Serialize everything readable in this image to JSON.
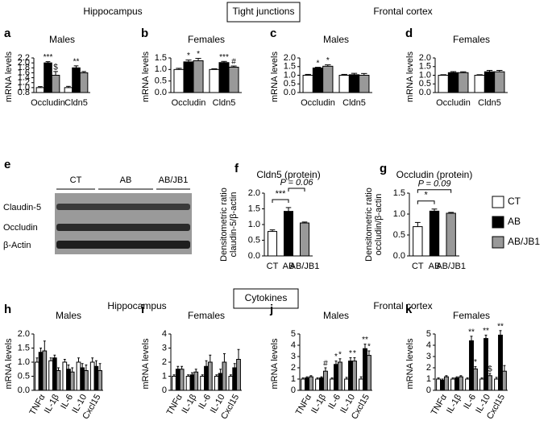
{
  "figure": {
    "headings": [
      "Hippocampus",
      "Tight junctions",
      "Frontal cortex",
      "Cytokines",
      "Hippocampus",
      "Frontal cortex"
    ],
    "blot": {
      "panel": "e",
      "groups": [
        "CT",
        "AB",
        "AB/JB1"
      ],
      "rows": [
        "Claudin-5",
        "Occludin",
        "β-Actin"
      ]
    }
  },
  "chart_data": [
    {
      "type": "bar",
      "panel": "a",
      "title": "Males",
      "ylabel": "mRNA levels",
      "categories": [
        "Occludin",
        "Cldn5"
      ],
      "ylim": [
        0.8,
        2.2
      ],
      "yticks": [
        0.8,
        {
          "value": 1,
          "label": "1.0"
        },
        1.2,
        1.4,
        1.6,
        1.8,
        {
          "value": 2,
          "label": "2.0"
        },
        2.2
      ],
      "series": [
        {
          "name": "CT",
          "color": "#ffffff",
          "values": [
            1.0,
            1.0
          ],
          "errors": [
            0.04,
            0.05
          ]
        },
        {
          "name": "AB",
          "color": "#000000",
          "values": [
            2.0,
            1.8
          ],
          "errors": [
            0.05,
            0.08
          ],
          "significance": [
            "***",
            "**"
          ]
        },
        {
          "name": "AB/JB1",
          "color": "#999999",
          "values": [
            1.5,
            1.6
          ],
          "errors": [
            0.15,
            0.05
          ],
          "significance": [
            "$",
            null
          ]
        }
      ]
    },
    {
      "type": "bar",
      "panel": "b",
      "title": "Females",
      "ylabel": "mRNA levels",
      "categories": [
        "Occludin",
        "Cldn5"
      ],
      "ylim": [
        0,
        1.5
      ],
      "yticks": [
        {
          "value": 0,
          "label": "0.0"
        },
        0.5,
        {
          "value": 1,
          "label": "1.0"
        },
        1.5
      ],
      "series": [
        {
          "name": "CT",
          "color": "#ffffff",
          "values": [
            1.0,
            1.0
          ],
          "errors": [
            0.05,
            0.03
          ]
        },
        {
          "name": "AB",
          "color": "#000000",
          "values": [
            1.33,
            1.3
          ],
          "errors": [
            0.08,
            0.05
          ],
          "significance": [
            "*",
            "***"
          ]
        },
        {
          "name": "AB/JB1",
          "color": "#999999",
          "values": [
            1.38,
            1.1
          ],
          "errors": [
            0.1,
            0.05
          ],
          "significance": [
            "*",
            "#"
          ]
        }
      ]
    },
    {
      "type": "bar",
      "panel": "c",
      "title": "Males",
      "ylabel": "mRNA levels",
      "categories": [
        "Occludin",
        "Cldn5"
      ],
      "ylim": [
        0,
        2
      ],
      "yticks": [
        {
          "value": 0,
          "label": "0.0"
        },
        0.5,
        {
          "value": 1,
          "label": "1.0"
        },
        1.5,
        {
          "value": 2,
          "label": "2.0"
        }
      ],
      "series": [
        {
          "name": "CT",
          "color": "#ffffff",
          "values": [
            1.0,
            1.0
          ],
          "errors": [
            0.05,
            0.05
          ]
        },
        {
          "name": "AB",
          "color": "#000000",
          "values": [
            1.42,
            1.03
          ],
          "errors": [
            0.04,
            0.08
          ],
          "significance": [
            "*",
            null
          ]
        },
        {
          "name": "AB/JB1",
          "color": "#999999",
          "values": [
            1.52,
            1.0
          ],
          "errors": [
            0.08,
            0.1
          ],
          "significance": [
            "*",
            null
          ]
        }
      ]
    },
    {
      "type": "bar",
      "panel": "d",
      "title": "Females",
      "ylabel": "mRNA levels",
      "categories": [
        "Occludin",
        "Cldn5"
      ],
      "ylim": [
        0,
        2
      ],
      "yticks": [
        {
          "value": 0,
          "label": "0.0"
        },
        0.5,
        {
          "value": 1,
          "label": "1.0"
        },
        1.5,
        {
          "value": 2,
          "label": "2.0"
        }
      ],
      "series": [
        {
          "name": "CT",
          "color": "#ffffff",
          "values": [
            1.0,
            1.0
          ],
          "errors": [
            0.03,
            0.03
          ]
        },
        {
          "name": "AB",
          "color": "#000000",
          "values": [
            1.15,
            1.2
          ],
          "errors": [
            0.06,
            0.08
          ]
        },
        {
          "name": "AB/JB1",
          "color": "#999999",
          "values": [
            1.15,
            1.2
          ],
          "errors": [
            0.05,
            0.08
          ]
        }
      ]
    },
    {
      "type": "bar",
      "panel": "f",
      "title": "Cldn5 (protein)",
      "ylabel": [
        "Densitometric ratio",
        "claudin-5/β-actin"
      ],
      "categories": [
        "CT",
        "AB",
        "AB/JB1"
      ],
      "values": [
        0.78,
        1.42,
        1.05
      ],
      "errors": [
        0.05,
        0.12,
        0.03
      ],
      "colors": [
        "#ffffff",
        "#000000",
        "#999999"
      ],
      "ylim": [
        0,
        2
      ],
      "yticks": [
        {
          "value": 0,
          "label": "0.0"
        },
        0.5,
        {
          "value": 1,
          "label": "1.0"
        },
        1.5,
        {
          "value": 2,
          "label": "2.0"
        }
      ],
      "brackets": [
        {
          "text": "***",
          "from": 0,
          "to": 1
        },
        {
          "text": "P = 0.06",
          "from": 1,
          "to": 2
        }
      ]
    },
    {
      "type": "bar",
      "panel": "g",
      "title": "Occludin (protein)",
      "ylabel": [
        "Densitometric ratio",
        "occludin/β-actin"
      ],
      "categories": [
        "CT",
        "AB",
        "AB/JB1"
      ],
      "values": [
        0.7,
        1.07,
        1.02
      ],
      "errors": [
        0.1,
        0.05,
        0.02
      ],
      "colors": [
        "#ffffff",
        "#000000",
        "#999999"
      ],
      "ylim": [
        0,
        1.5
      ],
      "yticks": [
        {
          "value": 0,
          "label": "0.0"
        },
        0.5,
        {
          "value": 1,
          "label": "1.0"
        },
        1.5
      ],
      "brackets": [
        {
          "text": "*",
          "from": 0,
          "to": 1
        },
        {
          "text": "P = 0.09",
          "from": 0,
          "to": 2
        }
      ]
    },
    {
      "type": "bar",
      "panel": "h",
      "title": "Males",
      "ylabel": "mRNA levels",
      "categories": [
        "TNFα",
        "IL-1β",
        "IL-6",
        "IL-10",
        "Cxcl15"
      ],
      "ylim": [
        0,
        2
      ],
      "yticks": [
        {
          "value": 0,
          "label": "0.0"
        },
        0.5,
        {
          "value": 1,
          "label": "1.0"
        },
        1.5,
        {
          "value": 2,
          "label": "2.0"
        }
      ],
      "series": [
        {
          "name": "CT",
          "color": "#ffffff",
          "values": [
            1.0,
            1.05,
            1.0,
            1.0,
            1.0
          ],
          "errors": [
            0.15,
            0.1,
            0.1,
            0.15,
            0.15
          ]
        },
        {
          "name": "AB",
          "color": "#000000",
          "values": [
            1.35,
            1.15,
            0.75,
            0.8,
            0.85
          ],
          "errors": [
            0.15,
            0.1,
            0.15,
            0.15,
            0.2
          ]
        },
        {
          "name": "AB/JB1",
          "color": "#999999",
          "values": [
            1.4,
            0.7,
            0.65,
            0.7,
            0.7
          ],
          "errors": [
            0.35,
            0.1,
            0.15,
            0.2,
            0.25
          ]
        }
      ]
    },
    {
      "type": "bar",
      "panel": "i",
      "title": "Females",
      "ylabel": "mRNA levels",
      "categories": [
        "TNFα",
        "IL-1β",
        "IL-6",
        "IL-10",
        "Cxcl15"
      ],
      "ylim": [
        0,
        4
      ],
      "yticks": [
        0,
        1,
        2,
        3,
        4
      ],
      "series": [
        {
          "name": "CT",
          "color": "#ffffff",
          "values": [
            1.0,
            1.0,
            1.0,
            1.0,
            1.0
          ],
          "errors": [
            0.1,
            0.1,
            0.1,
            0.1,
            0.1
          ]
        },
        {
          "name": "AB",
          "color": "#000000",
          "values": [
            1.5,
            1.1,
            1.7,
            1.2,
            1.6
          ],
          "errors": [
            0.2,
            0.15,
            0.4,
            0.3,
            0.3
          ]
        },
        {
          "name": "AB/JB1",
          "color": "#999999",
          "values": [
            1.5,
            1.3,
            2.0,
            2.0,
            2.2
          ],
          "errors": [
            0.2,
            0.2,
            0.5,
            0.6,
            0.7
          ]
        }
      ]
    },
    {
      "type": "bar",
      "panel": "j",
      "title": "Males",
      "ylabel": "mRNA levels",
      "categories": [
        "TNFα",
        "IL-1β",
        "IL-6",
        "IL-10",
        "Cxcl15"
      ],
      "ylim": [
        0,
        5
      ],
      "yticks": [
        0,
        1,
        2,
        3,
        4,
        5
      ],
      "series": [
        {
          "name": "CT",
          "color": "#ffffff",
          "values": [
            1.0,
            1.0,
            1.0,
            1.0,
            1.0
          ],
          "errors": [
            0.1,
            0.1,
            0.1,
            0.15,
            0.2
          ]
        },
        {
          "name": "AB",
          "color": "#000000",
          "values": [
            1.1,
            1.1,
            2.3,
            2.6,
            3.7
          ],
          "errors": [
            0.1,
            0.1,
            0.3,
            0.3,
            0.4
          ],
          "significance": [
            null,
            null,
            "*",
            "*",
            "**"
          ]
        },
        {
          "name": "AB/JB1",
          "color": "#999999",
          "values": [
            1.2,
            1.7,
            2.5,
            2.6,
            3.1
          ],
          "errors": [
            0.1,
            0.3,
            0.3,
            0.3,
            0.4
          ],
          "significance": [
            null,
            "#",
            "*",
            "*",
            "*"
          ]
        }
      ]
    },
    {
      "type": "bar",
      "panel": "k",
      "title": "Females",
      "ylabel": "mRNA levels",
      "categories": [
        "TNFα",
        "IL-1β",
        "IL-6",
        "IL-10",
        "Cxcl15"
      ],
      "ylim": [
        0,
        5
      ],
      "yticks": [
        0,
        1,
        2,
        3,
        4,
        5
      ],
      "series": [
        {
          "name": "CT",
          "color": "#ffffff",
          "values": [
            1.0,
            1.0,
            1.0,
            1.0,
            1.0
          ],
          "errors": [
            0.1,
            0.1,
            0.1,
            0.1,
            0.15
          ]
        },
        {
          "name": "AB",
          "color": "#000000",
          "values": [
            0.9,
            1.1,
            4.4,
            4.6,
            4.9
          ],
          "errors": [
            0.1,
            0.1,
            0.4,
            0.3,
            0.4
          ],
          "significance": [
            null,
            null,
            "**",
            "**",
            "**"
          ]
        },
        {
          "name": "AB/JB1",
          "color": "#999999",
          "values": [
            1.2,
            1.2,
            1.9,
            1.3,
            1.7
          ],
          "errors": [
            0.1,
            0.1,
            0.2,
            0.2,
            0.5
          ],
          "significance": [
            null,
            null,
            "*",
            "$",
            null
          ]
        }
      ]
    }
  ]
}
